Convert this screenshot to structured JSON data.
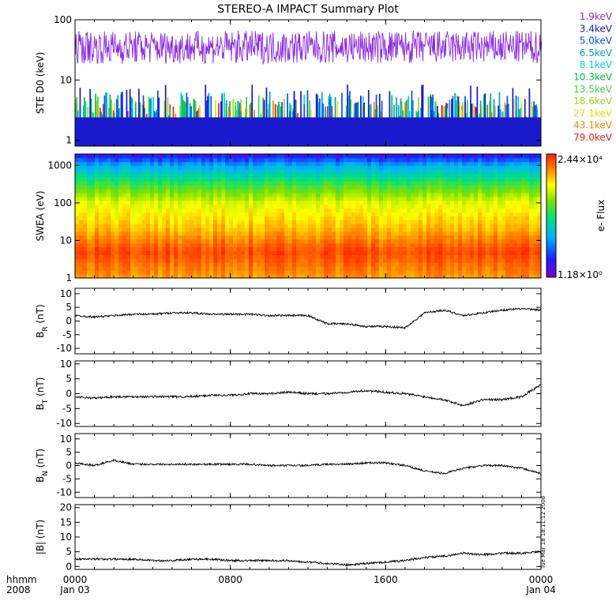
{
  "title": "STEREO-A IMPACT Summary Plot",
  "timestamp_label": "Tue Mar 18 18:11:12 2008",
  "time_axis": {
    "row1_label": "hhmm",
    "row2_label": "2008",
    "ticks": [
      {
        "hours": 0,
        "label": "0000",
        "sublabel": "Jan 03"
      },
      {
        "hours": 8,
        "label": "0800",
        "sublabel": ""
      },
      {
        "hours": 16,
        "label": "1600",
        "sublabel": ""
      },
      {
        "hours": 24,
        "label": "0000",
        "sublabel": "Jan 04"
      }
    ],
    "range_hours": [
      0,
      24
    ]
  },
  "chart_data": [
    {
      "id": "ste",
      "type": "line",
      "ylabel": "STE D0 (keV)",
      "yscale": "log",
      "ylim": [
        0.8,
        100
      ],
      "yticks": [
        1,
        10,
        100
      ],
      "ytick_labels": [
        "1",
        "10",
        "100"
      ],
      "series": [
        {
          "name": "1.9keV",
          "color": "#8a2be2",
          "typical_value": 35
        },
        {
          "name": "3.4keV",
          "color": "#1a1acc",
          "typical_value": 2.4
        },
        {
          "name": "5.0keV",
          "color": "#0050ff",
          "typical_value": 2.0
        },
        {
          "name": "6.5keV",
          "color": "#00a0d0",
          "typical_value": 1.9
        },
        {
          "name": "8.1keV",
          "color": "#00d4d4",
          "typical_value": 1.8
        },
        {
          "name": "10.3keV",
          "color": "#00c040",
          "typical_value": 1.7
        },
        {
          "name": "13.5keV",
          "color": "#40d040",
          "typical_value": 1.6
        },
        {
          "name": "18.6keV",
          "color": "#a0d020",
          "typical_value": 1.5
        },
        {
          "name": "27.1keV",
          "color": "#e8e000",
          "typical_value": 1.4
        },
        {
          "name": "43.1keV",
          "color": "#ff8000",
          "typical_value": 1.3
        },
        {
          "name": "79.0keV",
          "color": "#e02020",
          "typical_value": 1.2
        }
      ]
    },
    {
      "id": "swea",
      "type": "heatmap",
      "ylabel": "SWEA (eV)",
      "yscale": "log",
      "ylim": [
        1,
        2000
      ],
      "yticks": [
        1,
        10,
        100,
        1000
      ],
      "ytick_labels": [
        "1",
        "10",
        "100",
        "1000"
      ],
      "colorbar": {
        "label": "e- Flux",
        "max_label": "2.44×10⁴",
        "min_label": "1.18×10⁰",
        "max_value": 24400,
        "min_value": 1.18
      },
      "energy_profile": [
        {
          "energy_eV": 1,
          "level": 0.85
        },
        {
          "energy_eV": 5,
          "level": 0.95
        },
        {
          "energy_eV": 20,
          "level": 0.82
        },
        {
          "energy_eV": 100,
          "level": 0.72
        },
        {
          "energy_eV": 300,
          "level": 0.55
        },
        {
          "energy_eV": 1000,
          "level": 0.32
        },
        {
          "energy_eV": 2000,
          "level": 0.1
        }
      ]
    },
    {
      "id": "br",
      "type": "line",
      "ylabel": "B",
      "ylabel_sub": "R",
      "ylabel_unit": "(nT)",
      "ylim": [
        -12,
        12
      ],
      "yticks": [
        -10,
        -5,
        0,
        5,
        10
      ],
      "ytick_labels": [
        "-10",
        "-5",
        "0",
        "5",
        "10"
      ],
      "series": [
        {
          "name": "",
          "x": [
            0,
            1,
            2,
            3,
            4,
            5,
            6,
            7,
            8,
            9,
            10,
            11,
            12,
            13,
            14,
            15,
            16,
            17,
            18,
            19,
            20,
            21,
            22,
            23,
            24
          ],
          "y": [
            2,
            1.5,
            2,
            2.5,
            2.5,
            3,
            3,
            2.5,
            2.5,
            2.5,
            2,
            2,
            2,
            -1,
            -1,
            -2,
            -2,
            -2.5,
            3,
            4,
            2,
            3,
            4,
            4.5,
            4
          ]
        }
      ]
    },
    {
      "id": "bt",
      "type": "line",
      "ylabel": "B",
      "ylabel_sub": "T",
      "ylabel_unit": "(nT)",
      "ylim": [
        -11,
        11
      ],
      "yticks": [
        -10,
        -5,
        0,
        5,
        10
      ],
      "ytick_labels": [
        "-10",
        "-5",
        "0",
        "5",
        "10"
      ],
      "series": [
        {
          "name": "",
          "x": [
            0,
            1,
            2,
            3,
            4,
            5,
            6,
            7,
            8,
            9,
            10,
            11,
            12,
            13,
            14,
            15,
            16,
            17,
            18,
            19,
            20,
            21,
            22,
            23,
            24
          ],
          "y": [
            -1,
            -1.5,
            -1,
            -1,
            -1,
            -1,
            -1,
            -0.5,
            -0.5,
            0,
            0,
            0.5,
            0,
            0,
            0.5,
            1,
            0.5,
            0,
            -1,
            -2,
            -4,
            -2,
            -2,
            -1,
            3
          ]
        }
      ]
    },
    {
      "id": "bn",
      "type": "line",
      "ylabel": "B",
      "ylabel_sub": "N",
      "ylabel_unit": "(nT)",
      "ylim": [
        -12,
        12
      ],
      "yticks": [
        -10,
        -5,
        0,
        5,
        10
      ],
      "ytick_labels": [
        "-10",
        "-5",
        "0",
        "5",
        "10"
      ],
      "series": [
        {
          "name": "",
          "x": [
            0,
            1,
            2,
            3,
            4,
            5,
            6,
            7,
            8,
            9,
            10,
            11,
            12,
            13,
            14,
            15,
            16,
            17,
            18,
            19,
            20,
            21,
            22,
            23,
            24
          ],
          "y": [
            1,
            0,
            2,
            0.5,
            0.5,
            0.5,
            0.5,
            0.5,
            0.5,
            0.5,
            0,
            0,
            0,
            0.5,
            0.5,
            1,
            1,
            0,
            -2,
            -3,
            -1,
            0,
            0,
            -1,
            -3
          ]
        }
      ]
    },
    {
      "id": "bmag",
      "type": "line",
      "ylabel": "|B| (nT)",
      "ylim": [
        -1,
        21
      ],
      "yticks": [
        0,
        5,
        10,
        15,
        20
      ],
      "ytick_labels": [
        "0",
        "5",
        "10",
        "15",
        "20"
      ],
      "series": [
        {
          "name": "",
          "x": [
            0,
            1,
            2,
            3,
            4,
            5,
            6,
            7,
            8,
            9,
            10,
            11,
            12,
            13,
            14,
            15,
            16,
            17,
            18,
            19,
            20,
            21,
            22,
            23,
            24
          ],
          "y": [
            2.5,
            2.5,
            2.5,
            2.5,
            2,
            2,
            2.5,
            2.5,
            2,
            2,
            2,
            2,
            1.5,
            1,
            0.5,
            1,
            1.5,
            2,
            3,
            3.5,
            4.5,
            4,
            4.5,
            4.5,
            5
          ]
        }
      ]
    }
  ]
}
